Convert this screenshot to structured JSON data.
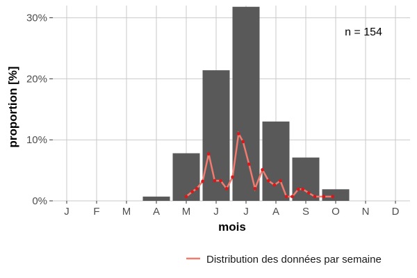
{
  "chart_data": {
    "type": "bar",
    "categories": [
      "J",
      "F",
      "M",
      "A",
      "M",
      "J",
      "J",
      "A",
      "S",
      "O",
      "N",
      "D"
    ],
    "xlabel": "mois",
    "ylabel": "proportion [%]",
    "ylim": [
      0,
      32
    ],
    "y_ticks": [
      0,
      10,
      20,
      30
    ],
    "y_tick_labels": [
      "0%",
      "10%",
      "20%",
      "30%"
    ],
    "grid": true,
    "legend_position": "bottom-right",
    "annotation": "n = 154",
    "series": [
      {
        "type": "bar",
        "color": "#595959",
        "values": [
          0,
          0,
          0,
          0.7,
          7.8,
          21.4,
          31.8,
          13.0,
          7.1,
          1.9,
          0,
          0
        ]
      },
      {
        "type": "line",
        "name": "Distribution des données par semaine",
        "color": "#f07b6e",
        "point_color": "#d7191c",
        "x": [
          4.0,
          4.2,
          4.35,
          4.55,
          4.75,
          4.95,
          5.15,
          5.35,
          5.55,
          5.75,
          5.9,
          6.1,
          6.3,
          6.55,
          6.75,
          6.95,
          7.15,
          7.35,
          7.55,
          7.75,
          7.9,
          8.1,
          8.3,
          8.6,
          8.9
        ],
        "y": [
          0.7,
          1.5,
          2.0,
          3.2,
          7.7,
          3.3,
          3.3,
          2.0,
          3.9,
          11.0,
          9.7,
          6.0,
          2.0,
          5.1,
          3.3,
          2.6,
          3.3,
          0.7,
          0.7,
          1.9,
          1.9,
          1.3,
          0.7,
          0.7,
          0.7
        ]
      }
    ]
  }
}
